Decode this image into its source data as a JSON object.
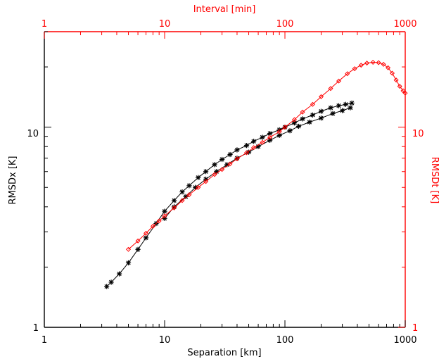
{
  "chart_data": {
    "type": "scatter",
    "x_bottom": {
      "label": "Separation [km]",
      "scale": "log",
      "range": [
        1,
        1000
      ],
      "ticks": [
        "1",
        "10",
        "100",
        "1000"
      ]
    },
    "x_top": {
      "label": "Interval [min]",
      "scale": "log",
      "range": [
        1,
        1000
      ],
      "ticks": [
        "1",
        "10",
        "100",
        "1000"
      ]
    },
    "y_left": {
      "label": "RMSDx [K]",
      "scale": "log",
      "range": [
        1,
        30
      ],
      "ticks": [
        "1",
        "10"
      ]
    },
    "y_right": {
      "label": "RMSDt [K]",
      "scale": "log",
      "range": [
        1,
        30
      ],
      "ticks": [
        "1",
        "10"
      ]
    },
    "colors": {
      "spatial": "#000000",
      "temporal": "#ff0000",
      "frame": "#000000",
      "right_frame": "#ff0000"
    },
    "series": [
      {
        "axes": "bottom-left",
        "marker": "asterisk",
        "color": "#000000",
        "points": [
          [
            3.3,
            1.6
          ],
          [
            3.6,
            1.68
          ],
          [
            4.2,
            1.85
          ],
          [
            5.0,
            2.1
          ],
          [
            6.0,
            2.45
          ],
          [
            7.0,
            2.8
          ],
          [
            8.5,
            3.3
          ],
          [
            10.0,
            3.8
          ],
          [
            12.0,
            4.3
          ],
          [
            14.0,
            4.75
          ],
          [
            16.0,
            5.1
          ],
          [
            19.0,
            5.6
          ],
          [
            22.0,
            6.0
          ],
          [
            26.0,
            6.5
          ],
          [
            30.0,
            6.9
          ],
          [
            35.0,
            7.3
          ],
          [
            40.0,
            7.7
          ],
          [
            48.0,
            8.1
          ],
          [
            55.0,
            8.5
          ],
          [
            65.0,
            8.9
          ],
          [
            75.0,
            9.3
          ],
          [
            90.0,
            9.7
          ],
          [
            100.0,
            10.0
          ],
          [
            120.0,
            10.5
          ],
          [
            140.0,
            11.0
          ],
          [
            170.0,
            11.5
          ],
          [
            200.0,
            12.0
          ],
          [
            240.0,
            12.5
          ],
          [
            280.0,
            12.8
          ],
          [
            320.0,
            13.0
          ],
          [
            360.0,
            13.2
          ]
        ]
      },
      {
        "axes": "bottom-left",
        "marker": "asterisk",
        "color": "#000000",
        "points": [
          [
            10.0,
            3.5
          ],
          [
            12.0,
            4.0
          ],
          [
            15.0,
            4.5
          ],
          [
            18.0,
            5.0
          ],
          [
            22.0,
            5.5
          ],
          [
            27.0,
            6.0
          ],
          [
            33.0,
            6.5
          ],
          [
            40.0,
            7.0
          ],
          [
            50.0,
            7.5
          ],
          [
            60.0,
            8.0
          ],
          [
            75.0,
            8.6
          ],
          [
            90.0,
            9.1
          ],
          [
            110.0,
            9.6
          ],
          [
            130.0,
            10.1
          ],
          [
            160.0,
            10.6
          ],
          [
            200.0,
            11.1
          ],
          [
            250.0,
            11.7
          ],
          [
            300.0,
            12.1
          ],
          [
            350.0,
            12.5
          ]
        ]
      },
      {
        "axes": "top-right",
        "marker": "diamond",
        "color": "#ff0000",
        "points": [
          [
            5.0,
            2.45
          ],
          [
            6.0,
            2.7
          ],
          [
            7.0,
            2.95
          ],
          [
            8.0,
            3.2
          ],
          [
            9.0,
            3.4
          ],
          [
            10.0,
            3.6
          ],
          [
            12.0,
            3.95
          ],
          [
            14.0,
            4.3
          ],
          [
            16.0,
            4.6
          ],
          [
            19.0,
            5.0
          ],
          [
            22.0,
            5.35
          ],
          [
            26.0,
            5.8
          ],
          [
            30.0,
            6.15
          ],
          [
            35.0,
            6.55
          ],
          [
            40.0,
            6.95
          ],
          [
            48.0,
            7.45
          ],
          [
            55.0,
            7.9
          ],
          [
            65.0,
            8.4
          ],
          [
            75.0,
            8.9
          ],
          [
            90.0,
            9.5
          ],
          [
            100.0,
            10.0
          ],
          [
            120.0,
            10.9
          ],
          [
            140.0,
            11.9
          ],
          [
            170.0,
            13.0
          ],
          [
            200.0,
            14.2
          ],
          [
            240.0,
            15.6
          ],
          [
            280.0,
            17.0
          ],
          [
            330.0,
            18.5
          ],
          [
            380.0,
            19.6
          ],
          [
            430.0,
            20.4
          ],
          [
            480.0,
            20.9
          ],
          [
            540.0,
            21.1
          ],
          [
            600.0,
            21.0
          ],
          [
            660.0,
            20.6
          ],
          [
            720.0,
            19.8
          ],
          [
            780.0,
            18.6
          ],
          [
            840.0,
            17.2
          ],
          [
            900.0,
            16.0
          ],
          [
            960.0,
            15.2
          ],
          [
            1000.0,
            14.8
          ]
        ]
      }
    ]
  }
}
